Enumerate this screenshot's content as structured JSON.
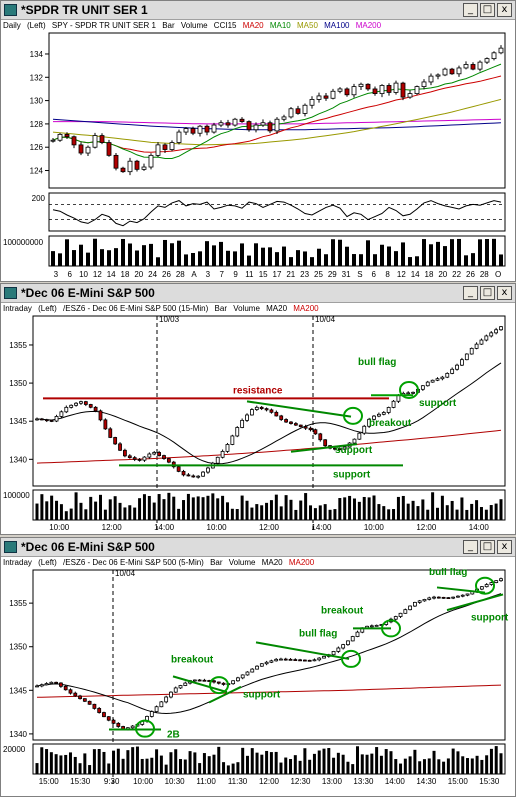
{
  "windows": [
    {
      "title": "*SPDR TR UNIT SER 1",
      "info": {
        "interval": "Daily",
        "axis": "(Left)",
        "symbol": "SPY - SPDR TR UNIT SER 1",
        "type": "Bar",
        "volume": "Volume",
        "osc": "CCI15",
        "ma": [
          {
            "label": "MA20",
            "color": "#cc0000"
          },
          {
            "label": "MA10",
            "color": "#008800"
          },
          {
            "label": "MA50",
            "color": "#999900"
          },
          {
            "label": "MA100",
            "color": "#000088"
          },
          {
            "label": "MA200",
            "color": "#cc00cc"
          }
        ]
      },
      "buttons": [
        "_",
        "□",
        "x"
      ]
    },
    {
      "title": "*Dec 06  E-Mini S&P 500",
      "info": {
        "interval": "Intraday",
        "axis": "(Left)",
        "symbol": "/ESZ6 - Dec 06  E-Mini S&P 500  (15-Min)",
        "type": "Bar",
        "volume": "Volume",
        "ma": [
          {
            "label": "MA20",
            "color": "#000000"
          },
          {
            "label": "MA200",
            "color": "#cc0000"
          }
        ]
      },
      "buttons": [
        "_",
        "□",
        "x"
      ]
    },
    {
      "title": "*Dec 06  E-Mini S&P 500",
      "info": {
        "interval": "Intraday",
        "axis": "(Left)",
        "symbol": "/ESZ6 - Dec 06  E-Mini S&P 500  (5-Min)",
        "type": "Bar",
        "volume": "Volume",
        "ma": [
          {
            "label": "MA20",
            "color": "#000000"
          },
          {
            "label": "MA200",
            "color": "#cc0000"
          }
        ]
      },
      "buttons": [
        "_",
        "□",
        "x"
      ]
    }
  ],
  "chart_data": [
    {
      "type": "candlestick",
      "y_ticks": [
        124,
        126,
        128,
        130,
        132,
        134
      ],
      "ylim": [
        122.5,
        135.8
      ],
      "x_ticks": [
        "3",
        "6",
        "10",
        "12",
        "14",
        "18",
        "20",
        "24",
        "26",
        "28",
        "A",
        "3",
        "7",
        "9",
        "11",
        "15",
        "17",
        "21",
        "23",
        "25",
        "29",
        "31",
        "S",
        "6",
        "8",
        "12",
        "14",
        "18",
        "20",
        "22",
        "26",
        "28",
        "O"
      ],
      "closes": [
        126.6,
        127.1,
        126.9,
        126.2,
        125.5,
        126,
        127,
        126.4,
        125.3,
        124.2,
        123.9,
        124.8,
        124.1,
        124.3,
        125.3,
        126.2,
        125.8,
        126.4,
        127.3,
        127.6,
        127.2,
        127.8,
        127.3,
        127.9,
        128.1,
        127.9,
        128.4,
        128.2,
        127.5,
        127.9,
        128.1,
        127.4,
        128.4,
        128.6,
        129.3,
        128.9,
        129.6,
        130.1,
        130.4,
        130.2,
        130.8,
        131,
        130.5,
        131.2,
        131.4,
        131,
        130.6,
        131.3,
        130.7,
        131.5,
        130.3,
        130.6,
        131.2,
        131.6,
        132.1,
        132.2,
        132.7,
        132.3,
        132.8,
        133.1,
        132.7,
        133.3,
        133.6,
        134.1,
        134.5
      ],
      "volume_label": "100000000",
      "cci": {
        "top_label": "200",
        "values": [
          30,
          10,
          -40,
          -80,
          -130,
          -150,
          -100,
          -30,
          -60,
          -150,
          -180,
          -120,
          -140,
          -90,
          0,
          80,
          60,
          120,
          150,
          80,
          110,
          100,
          130,
          40,
          60,
          90,
          80,
          50,
          130,
          110,
          60,
          100,
          140,
          130,
          90,
          40,
          -20,
          -40,
          10,
          60,
          90,
          50,
          -60,
          -10,
          -30,
          -100,
          -60,
          -20,
          60,
          20,
          -50,
          -30,
          40,
          120,
          150,
          110,
          80,
          60,
          40,
          80,
          100,
          90,
          120,
          150,
          130
        ]
      }
    },
    {
      "type": "candlestick",
      "y_ticks": [
        1340,
        1345,
        1350,
        1355
      ],
      "ylim": [
        1336.5,
        1358.8
      ],
      "x_ticks": [
        "10:00",
        "12:00",
        "14:00",
        "10:00",
        "12:00",
        "14:00",
        "10:00",
        "12:00",
        "14:00"
      ],
      "date_labels": [
        "10/03",
        "10/04"
      ],
      "volume_label": "100000",
      "annotations": [
        "resistance",
        "bull flag",
        "support",
        "breakout",
        "support",
        "support"
      ]
    },
    {
      "type": "candlestick",
      "y_ticks": [
        1340,
        1345,
        1350,
        1355
      ],
      "ylim": [
        1339.3,
        1358.8
      ],
      "x_ticks": [
        "15:00",
        "15:30",
        "9:30",
        "10:00",
        "10:30",
        "11:00",
        "11:30",
        "12:00",
        "12:30",
        "13:00",
        "13:30",
        "14:00",
        "14:30",
        "15:00",
        "15:30"
      ],
      "date_labels": [
        "10/04"
      ],
      "volume_label": "20000",
      "annotations": [
        "breakout",
        "support",
        "2B",
        "bull flag",
        "breakout",
        "bull flag",
        "support"
      ]
    }
  ]
}
